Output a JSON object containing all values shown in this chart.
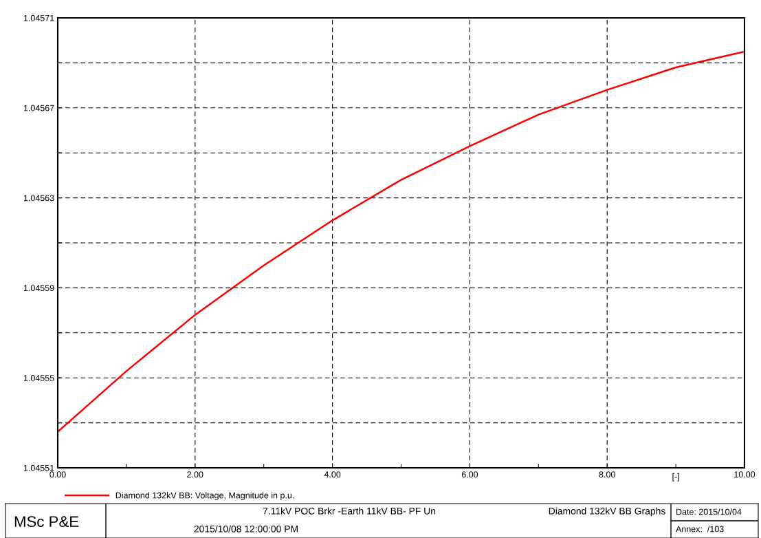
{
  "chart_data": {
    "type": "line",
    "xlabel": "[-]",
    "x": [
      0,
      1,
      2,
      3,
      4,
      5,
      6,
      7,
      8,
      9,
      10
    ],
    "series": [
      {
        "name": "Diamond 132kV BB: Voltage, Magnitude in p.u.",
        "color": "#ff0000",
        "values": [
          1.045526,
          1.045553,
          1.045578,
          1.0456,
          1.04562,
          1.045638,
          1.045653,
          1.045667,
          1.045678,
          1.045688,
          1.045695
        ]
      }
    ],
    "xlim": [
      0,
      10
    ],
    "xticks": [
      {
        "value": 0,
        "label": "0.00"
      },
      {
        "value": 1,
        "label": null
      },
      {
        "value": 2,
        "label": "2.00"
      },
      {
        "value": 3,
        "label": null
      },
      {
        "value": 4,
        "label": "4.00"
      },
      {
        "value": 5,
        "label": null
      },
      {
        "value": 6,
        "label": "6.00"
      },
      {
        "value": 7,
        "label": null
      },
      {
        "value": 8,
        "label": "8.00"
      },
      {
        "value": 9,
        "label": null
      },
      {
        "value": 10,
        "label": "10.00"
      }
    ],
    "ylim": [
      1.04551,
      1.04571
    ],
    "yticks": [
      1.04551,
      {
        "value": 1.04553,
        "label": null
      },
      1.04555,
      {
        "value": 1.04557,
        "label": null
      },
      1.04559,
      {
        "value": 1.04561,
        "label": null
      },
      1.04563,
      {
        "value": 1.04565,
        "label": null
      },
      1.04567,
      {
        "value": 1.04569,
        "label": null
      },
      1.04571
    ],
    "grid": true,
    "legend": "bottom",
    "line_style": "solid",
    "marker": "none",
    "annotations": [
      "MSc P&E",
      "7.11kV POC Brkr -Earth 11kV BB- PF Un",
      "Diamond 132kV BB Graphs",
      "Date: 2015/10/04",
      "2015/10/08 12:00:00 PM",
      "Annex:  /103"
    ]
  }
}
